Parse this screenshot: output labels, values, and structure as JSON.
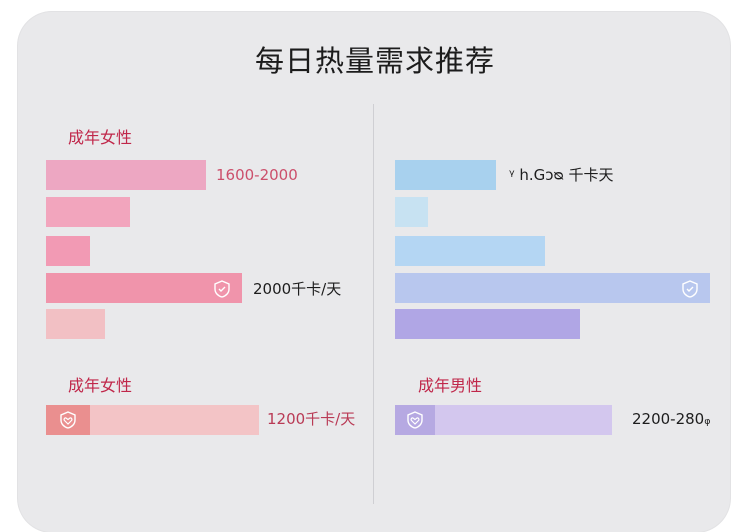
{
  "title": "每日热量需求推荐",
  "labels": {
    "female_top": "成年女性",
    "female_bottom": "成年女性",
    "male_bottom": "成年男性"
  },
  "values": {
    "female_range": "1600-2000",
    "female_kcal": "2000千卡/天",
    "female_bottom_kcal": "1200千卡/天",
    "right_top_kcal": "ᵞ h.Gᴐᴓ 千卡天",
    "male_range": "2200-280ᵩ"
  },
  "icons": {
    "female_bar_icon": "shield-icon",
    "right_bar_icon": "shield-icon",
    "female_bottom_icon": "heart-shield-icon",
    "male_bottom_icon": "heart-shield-icon"
  },
  "colors": {
    "pink_1": "#eda7c2",
    "pink_2": "#f2a5bd",
    "pink_3": "#f29ab4",
    "pink_4": "#f094ab",
    "pink_5": "#f2c0c4",
    "pink_bottom": "#f3c4c6",
    "pink_bottom_icon_bg": "#ea8f8f",
    "blue_1": "#a8d1ee",
    "blue_2": "#c7e2f2",
    "blue_3": "#b4d6f3",
    "blue_4": "#b8c7ee",
    "purple_5": "#b0a6e5",
    "purple_bottom": "#d3c7ee",
    "purple_bottom_icon_bg": "#b6a9e2",
    "label_red": "#c0274a"
  }
}
